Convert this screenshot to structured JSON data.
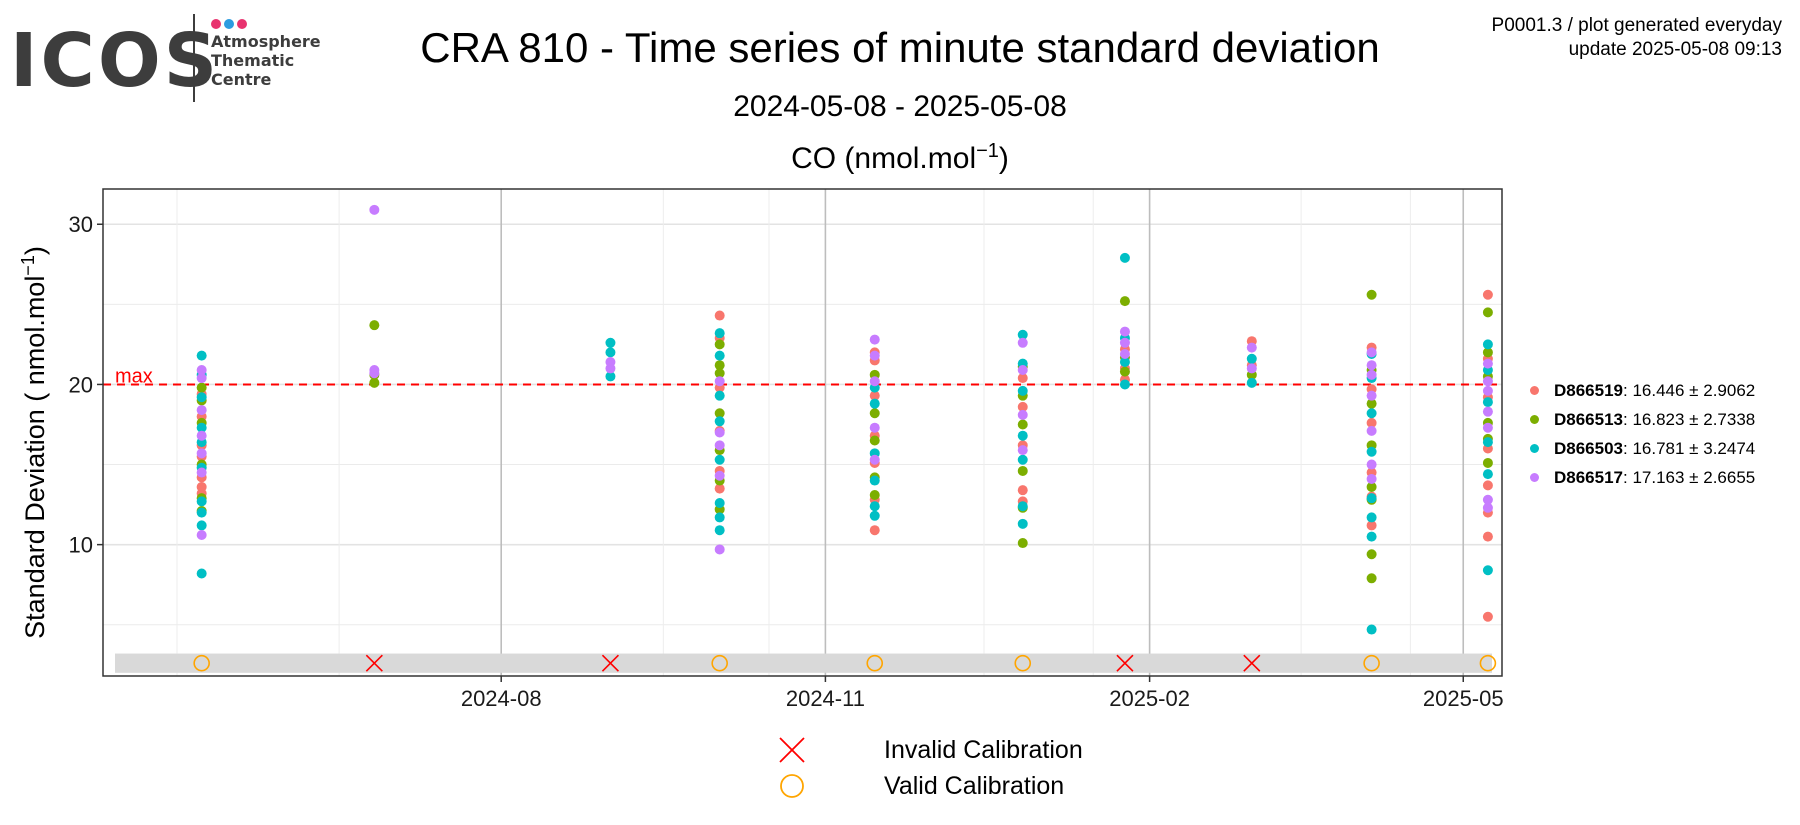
{
  "logo": {
    "word": "ICOS",
    "subtitle_lines": [
      "Atmosphere",
      "Thematic",
      "Centre"
    ],
    "dot_colors": [
      "#e8336f",
      "#2c9ce0",
      "#e8336f"
    ]
  },
  "header": {
    "title": "CRA 810 - Time series of minute standard deviation",
    "date_range": "2024-05-08 - 2025-05-08",
    "species": "CO (nmol.mol",
    "species_exp": "−1",
    "species_close": ")",
    "plot_code": "P0001.3 / plot generated everyday",
    "update": "update  2025-05-08 09:13"
  },
  "chart_data": {
    "type": "scatter",
    "ylabel": "Standard Deviation ( nmol.mol",
    "ylabel_exp": "−1",
    "ylabel_close": ")",
    "x_range": [
      "2024-04-10",
      "2025-05-12"
    ],
    "y_range": [
      1.8,
      32.2
    ],
    "y_ticks": [
      10,
      20,
      30
    ],
    "x_ticks": [
      {
        "date": "2024-08-01",
        "label": "2024-08"
      },
      {
        "date": "2024-11-01",
        "label": "2024-11"
      },
      {
        "date": "2025-02-01",
        "label": "2025-02"
      },
      {
        "date": "2025-05-01",
        "label": "2025-05"
      }
    ],
    "threshold": {
      "value": 20,
      "label": "max",
      "color": "#ff0000"
    },
    "grid": true,
    "legend_position": "right",
    "series": [
      {
        "name": "D866519",
        "stats": ": 16.446 ± 2.9062",
        "color": "#f8766d",
        "points": [
          [
            "2024-05-08",
            13.2
          ],
          [
            "2024-05-08",
            13.6
          ],
          [
            "2024-05-08",
            14.2
          ],
          [
            "2024-05-08",
            15.5
          ],
          [
            "2024-05-08",
            16.2
          ],
          [
            "2024-05-08",
            18.0
          ],
          [
            "2024-05-08",
            19.4
          ],
          [
            "2024-10-02",
            24.3
          ],
          [
            "2024-10-02",
            22.9
          ],
          [
            "2024-10-02",
            19.8
          ],
          [
            "2024-10-02",
            17.1
          ],
          [
            "2024-10-02",
            14.6
          ],
          [
            "2024-10-02",
            13.5
          ],
          [
            "2024-11-15",
            22.0
          ],
          [
            "2024-11-15",
            21.5
          ],
          [
            "2024-11-15",
            19.3
          ],
          [
            "2024-11-15",
            16.8
          ],
          [
            "2024-11-15",
            15.1
          ],
          [
            "2024-11-15",
            12.8
          ],
          [
            "2024-11-15",
            10.9
          ],
          [
            "2024-12-27",
            20.4
          ],
          [
            "2024-12-27",
            18.6
          ],
          [
            "2024-12-27",
            16.2
          ],
          [
            "2024-12-27",
            13.4
          ],
          [
            "2024-12-27",
            12.7
          ],
          [
            "2025-01-25",
            22.2
          ],
          [
            "2025-01-25",
            21.0
          ],
          [
            "2025-01-25",
            20.3
          ],
          [
            "2025-03-02",
            22.7
          ],
          [
            "2025-03-02",
            21.2
          ],
          [
            "2025-04-05",
            22.3
          ],
          [
            "2025-04-05",
            19.7
          ],
          [
            "2025-04-05",
            17.6
          ],
          [
            "2025-04-05",
            14.5
          ],
          [
            "2025-04-05",
            13.0
          ],
          [
            "2025-04-05",
            11.2
          ],
          [
            "2025-05-08",
            25.6
          ],
          [
            "2025-05-08",
            21.6
          ],
          [
            "2025-05-08",
            19.2
          ],
          [
            "2025-05-08",
            16.0
          ],
          [
            "2025-05-08",
            13.7
          ],
          [
            "2025-05-08",
            12.0
          ],
          [
            "2025-05-08",
            10.5
          ],
          [
            "2025-05-08",
            5.5
          ]
        ]
      },
      {
        "name": "D866513",
        "stats": ": 16.823 ± 2.7338",
        "color": "#7cae00",
        "points": [
          [
            "2024-05-08",
            12.1
          ],
          [
            "2024-05-08",
            12.9
          ],
          [
            "2024-05-08",
            15.0
          ],
          [
            "2024-05-08",
            17.6
          ],
          [
            "2024-05-08",
            19.0
          ],
          [
            "2024-05-08",
            19.8
          ],
          [
            "2024-06-26",
            23.7
          ],
          [
            "2024-06-26",
            20.6
          ],
          [
            "2024-06-26",
            20.1
          ],
          [
            "2024-10-02",
            22.5
          ],
          [
            "2024-10-02",
            21.2
          ],
          [
            "2024-10-02",
            20.7
          ],
          [
            "2024-10-02",
            18.2
          ],
          [
            "2024-10-02",
            15.9
          ],
          [
            "2024-10-02",
            14.0
          ],
          [
            "2024-10-02",
            12.2
          ],
          [
            "2024-11-15",
            20.6
          ],
          [
            "2024-11-15",
            18.2
          ],
          [
            "2024-11-15",
            16.5
          ],
          [
            "2024-11-15",
            14.2
          ],
          [
            "2024-11-15",
            13.1
          ],
          [
            "2024-12-27",
            21.1
          ],
          [
            "2024-12-27",
            19.3
          ],
          [
            "2024-12-27",
            17.5
          ],
          [
            "2024-12-27",
            14.6
          ],
          [
            "2024-12-27",
            12.3
          ],
          [
            "2024-12-27",
            10.1
          ],
          [
            "2025-01-25",
            25.2
          ],
          [
            "2025-01-25",
            21.7
          ],
          [
            "2025-01-25",
            20.8
          ],
          [
            "2025-03-02",
            20.6
          ],
          [
            "2025-04-05",
            25.6
          ],
          [
            "2025-04-05",
            20.9
          ],
          [
            "2025-04-05",
            18.8
          ],
          [
            "2025-04-05",
            16.2
          ],
          [
            "2025-04-05",
            13.6
          ],
          [
            "2025-04-05",
            12.8
          ],
          [
            "2025-04-05",
            9.4
          ],
          [
            "2025-04-05",
            7.9
          ],
          [
            "2025-05-08",
            24.5
          ],
          [
            "2025-05-08",
            22.0
          ],
          [
            "2025-05-08",
            20.5
          ],
          [
            "2025-05-08",
            17.6
          ],
          [
            "2025-05-08",
            16.6
          ],
          [
            "2025-05-08",
            15.1
          ]
        ]
      },
      {
        "name": "D866503",
        "stats": ": 16.781 ± 3.2474",
        "color": "#00bfc4",
        "points": [
          [
            "2024-05-08",
            21.8
          ],
          [
            "2024-05-08",
            20.6
          ],
          [
            "2024-05-08",
            19.2
          ],
          [
            "2024-05-08",
            17.3
          ],
          [
            "2024-05-08",
            16.4
          ],
          [
            "2024-05-08",
            14.8
          ],
          [
            "2024-05-08",
            12.7
          ],
          [
            "2024-05-08",
            12.0
          ],
          [
            "2024-05-08",
            11.2
          ],
          [
            "2024-05-08",
            8.2
          ],
          [
            "2024-09-01",
            22.6
          ],
          [
            "2024-09-01",
            22.0
          ],
          [
            "2024-09-01",
            20.5
          ],
          [
            "2024-10-02",
            23.2
          ],
          [
            "2024-10-02",
            21.8
          ],
          [
            "2024-10-02",
            19.3
          ],
          [
            "2024-10-02",
            17.7
          ],
          [
            "2024-10-02",
            15.3
          ],
          [
            "2024-10-02",
            12.6
          ],
          [
            "2024-10-02",
            11.7
          ],
          [
            "2024-10-02",
            10.9
          ],
          [
            "2024-11-15",
            19.8
          ],
          [
            "2024-11-15",
            18.8
          ],
          [
            "2024-11-15",
            15.7
          ],
          [
            "2024-11-15",
            14.0
          ],
          [
            "2024-11-15",
            12.4
          ],
          [
            "2024-11-15",
            11.8
          ],
          [
            "2024-12-27",
            23.1
          ],
          [
            "2024-12-27",
            21.3
          ],
          [
            "2024-12-27",
            19.6
          ],
          [
            "2024-12-27",
            16.8
          ],
          [
            "2024-12-27",
            15.3
          ],
          [
            "2024-12-27",
            12.4
          ],
          [
            "2024-12-27",
            11.3
          ],
          [
            "2025-01-25",
            27.9
          ],
          [
            "2025-01-25",
            22.9
          ],
          [
            "2025-01-25",
            21.4
          ],
          [
            "2025-01-25",
            20.0
          ],
          [
            "2025-03-02",
            21.6
          ],
          [
            "2025-03-02",
            20.1
          ],
          [
            "2025-04-05",
            21.9
          ],
          [
            "2025-04-05",
            20.4
          ],
          [
            "2025-04-05",
            18.2
          ],
          [
            "2025-04-05",
            15.8
          ],
          [
            "2025-04-05",
            12.9
          ],
          [
            "2025-04-05",
            11.7
          ],
          [
            "2025-04-05",
            10.5
          ],
          [
            "2025-04-05",
            4.7
          ],
          [
            "2025-05-08",
            22.5
          ],
          [
            "2025-05-08",
            20.9
          ],
          [
            "2025-05-08",
            18.9
          ],
          [
            "2025-05-08",
            16.4
          ],
          [
            "2025-05-08",
            14.4
          ],
          [
            "2025-05-08",
            8.4
          ]
        ]
      },
      {
        "name": "D866517",
        "stats": ": 17.163 ± 2.6655",
        "color": "#c77cff",
        "points": [
          [
            "2024-05-08",
            20.9
          ],
          [
            "2024-05-08",
            20.4
          ],
          [
            "2024-05-08",
            18.4
          ],
          [
            "2024-05-08",
            16.8
          ],
          [
            "2024-05-08",
            15.7
          ],
          [
            "2024-05-08",
            14.5
          ],
          [
            "2024-05-08",
            10.6
          ],
          [
            "2024-06-26",
            30.9
          ],
          [
            "2024-06-26",
            20.9
          ],
          [
            "2024-06-26",
            20.7
          ],
          [
            "2024-09-01",
            21.4
          ],
          [
            "2024-09-01",
            21.0
          ],
          [
            "2024-10-02",
            20.2
          ],
          [
            "2024-10-02",
            17.0
          ],
          [
            "2024-10-02",
            16.2
          ],
          [
            "2024-10-02",
            14.3
          ],
          [
            "2024-10-02",
            9.7
          ],
          [
            "2024-11-15",
            22.8
          ],
          [
            "2024-11-15",
            21.8
          ],
          [
            "2024-11-15",
            20.2
          ],
          [
            "2024-11-15",
            17.3
          ],
          [
            "2024-11-15",
            15.3
          ],
          [
            "2024-12-27",
            22.6
          ],
          [
            "2024-12-27",
            20.9
          ],
          [
            "2024-12-27",
            18.1
          ],
          [
            "2024-12-27",
            15.9
          ],
          [
            "2025-01-25",
            23.3
          ],
          [
            "2025-01-25",
            22.6
          ],
          [
            "2025-01-25",
            21.9
          ],
          [
            "2025-03-02",
            22.3
          ],
          [
            "2025-03-02",
            21.0
          ],
          [
            "2025-04-05",
            22.0
          ],
          [
            "2025-04-05",
            21.2
          ],
          [
            "2025-04-05",
            20.6
          ],
          [
            "2025-04-05",
            19.3
          ],
          [
            "2025-04-05",
            17.1
          ],
          [
            "2025-04-05",
            15.0
          ],
          [
            "2025-04-05",
            14.1
          ],
          [
            "2025-05-08",
            21.3
          ],
          [
            "2025-05-08",
            20.2
          ],
          [
            "2025-05-08",
            19.6
          ],
          [
            "2025-05-08",
            18.3
          ],
          [
            "2025-05-08",
            17.3
          ],
          [
            "2025-05-08",
            12.8
          ],
          [
            "2025-05-08",
            12.3
          ]
        ]
      }
    ],
    "calibration_band": [
      2.0,
      3.2
    ],
    "calibrations": [
      {
        "date": "2024-05-08",
        "valid": true
      },
      {
        "date": "2024-06-26",
        "valid": false
      },
      {
        "date": "2024-09-01",
        "valid": false
      },
      {
        "date": "2024-10-02",
        "valid": true
      },
      {
        "date": "2024-11-15",
        "valid": true
      },
      {
        "date": "2024-12-27",
        "valid": true
      },
      {
        "date": "2025-01-25",
        "valid": false
      },
      {
        "date": "2025-03-02",
        "valid": false
      },
      {
        "date": "2025-04-05",
        "valid": true
      },
      {
        "date": "2025-05-08",
        "valid": true
      }
    ],
    "calibration_level": 2.6,
    "calibration_legend": {
      "invalid": {
        "label": "Invalid Calibration",
        "color": "#ff0000"
      },
      "valid": {
        "label": "Valid Calibration",
        "color": "#ffa500"
      }
    }
  }
}
